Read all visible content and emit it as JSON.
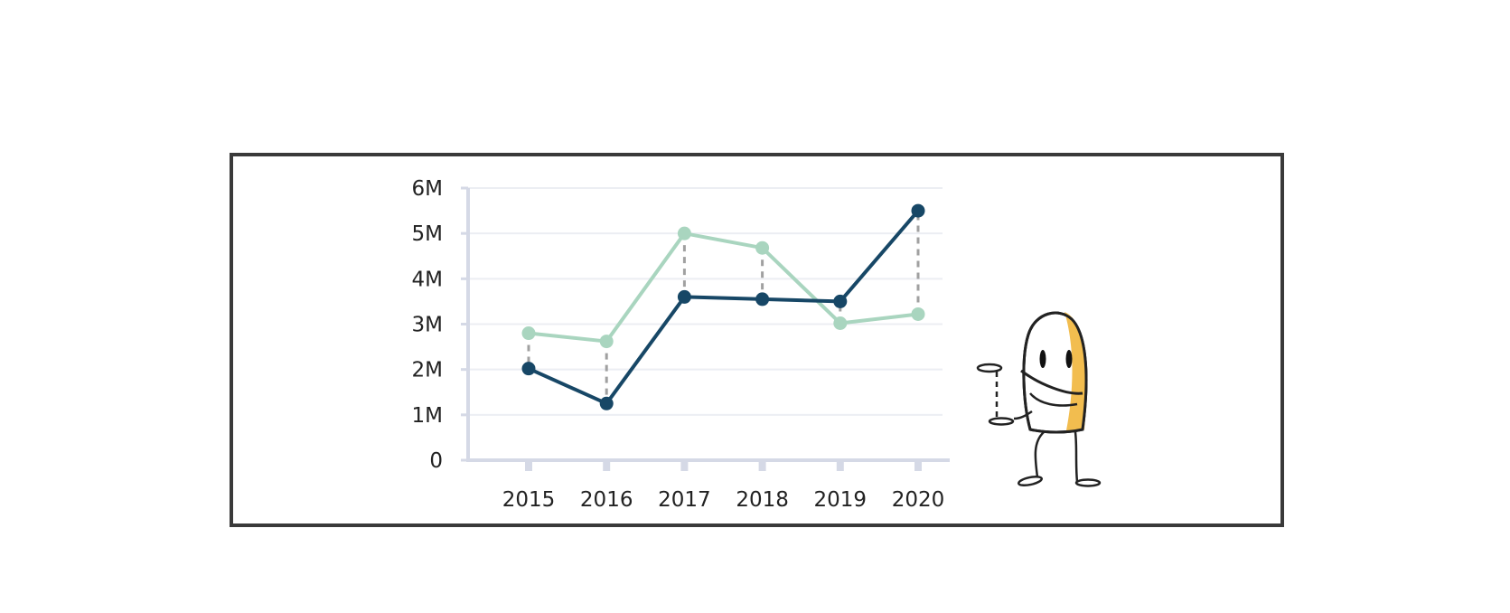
{
  "chart_data": {
    "type": "line",
    "title": "",
    "xlabel": "",
    "ylabel": "",
    "categories": [
      "2015",
      "2016",
      "2017",
      "2018",
      "2019",
      "2020"
    ],
    "y_ticks": [
      "0",
      "1M",
      "2M",
      "3M",
      "4M",
      "5M",
      "6M"
    ],
    "ylim": [
      0,
      6000000
    ],
    "grid": true,
    "legend": "none",
    "series": [
      {
        "color": "#a9d5bf",
        "values": [
          2800000,
          2620000,
          5000000,
          4680000,
          3020000,
          3220000
        ]
      },
      {
        "color": "#174766",
        "values": [
          2020000,
          1250000,
          3600000,
          3550000,
          3500000,
          5500000
        ]
      }
    ],
    "connectors": {
      "style": "dashed",
      "color": "#a0a0a0"
    }
  },
  "colors": {
    "frame": "#3a3a3a",
    "axis": "#d5d9e6",
    "grid": "#eceef3",
    "mascot_accent": "#f2bd4f"
  }
}
